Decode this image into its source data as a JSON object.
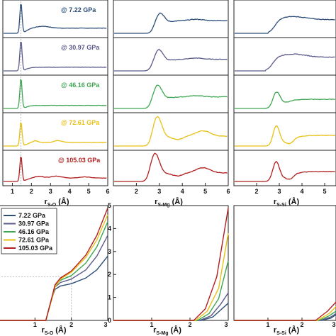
{
  "figure": {
    "pressures": [
      "7.22 GPa",
      "30.97 GPa",
      "46.16 GPa",
      "72.61 GPa",
      "105.03 GPa"
    ],
    "pressure_labels": [
      "@ 7.22 GPa",
      "@ 30.97 GPa",
      "@ 46.16 GPa",
      "@ 72.61 GPa",
      "@ 105.03 GPa"
    ],
    "colors": [
      "#2b4d78",
      "#5a5a8c",
      "#3fa652",
      "#e8c014",
      "#b21d1d"
    ],
    "column_labels": [
      {
        "main": "r",
        "sub": "S-O",
        "unit": " (Å)"
      },
      {
        "main": "r",
        "sub": "S-Mg",
        "unit": " (Å)"
      },
      {
        "main": "r",
        "sub": "S-Si",
        "unit": " (Å)"
      }
    ],
    "top_xticks": [
      [
        "1",
        "2",
        "3",
        "4",
        "5",
        "6"
      ],
      [
        "2",
        "3",
        "4",
        "5",
        "6"
      ],
      [
        "2",
        "3",
        "4",
        "5"
      ]
    ],
    "bottom_xticks": [
      [
        "1",
        "2",
        "3"
      ],
      [
        "1",
        "2",
        "3"
      ],
      [
        "1",
        "2",
        "3"
      ]
    ],
    "bottom_yticks": [
      "0",
      "1",
      "2",
      "3",
      "4",
      "5"
    ]
  },
  "chart_data": [
    {
      "type": "line",
      "panel": "top-left",
      "x_range": [
        0.5,
        6
      ],
      "xlabel": "rS-O (Å)",
      "series": [
        {
          "name": "7.22 GPa",
          "peak_x": 1.45,
          "peak_height": 1.0,
          "tail_level": 0.17
        },
        {
          "name": "30.97 GPa",
          "peak_x": 1.45,
          "peak_height": 1.0,
          "tail_level": 0.12
        },
        {
          "name": "46.16 GPa",
          "peak_x": 1.45,
          "peak_height": 1.0,
          "tail_level": 0.1
        },
        {
          "name": "72.61 GPa",
          "peak_x": 1.45,
          "peak_height": 0.8,
          "tail_level": 0.12
        },
        {
          "name": "105.03 GPa",
          "peak_x": 1.45,
          "peak_height": 0.9,
          "tail_level": 0.12
        }
      ]
    },
    {
      "type": "line",
      "panel": "top-middle",
      "x_range": [
        1,
        6
      ],
      "xlabel": "rS-Mg (Å)",
      "series": [
        {
          "name": "7.22 GPa",
          "peak_x": 3.0,
          "onset_x": 2.4
        },
        {
          "name": "30.97 GPa",
          "peak_x": 2.95,
          "onset_x": 2.3
        },
        {
          "name": "46.16 GPa",
          "peak_x": 2.9,
          "onset_x": 2.3
        },
        {
          "name": "72.61 GPa",
          "peak_x": 2.9,
          "onset_x": 2.3
        },
        {
          "name": "105.03 GPa",
          "peak_x": 2.8,
          "onset_x": 2.2
        }
      ]
    },
    {
      "type": "line",
      "panel": "top-right",
      "x_range": [
        1,
        5.5
      ],
      "xlabel": "rS-Si (Å)",
      "series": [
        {
          "name": "7.22 GPa",
          "onset_x": 2.5
        },
        {
          "name": "30.97 GPa",
          "onset_x": 2.4
        },
        {
          "name": "46.16 GPa",
          "onset_x": 2.3
        },
        {
          "name": "72.61 GPa",
          "onset_x": 2.3
        },
        {
          "name": "105.03 GPa",
          "onset_x": 2.2
        }
      ]
    },
    {
      "type": "line",
      "panel": "bottom-left",
      "xlabel": "rS-O (Å)",
      "x_range": [
        0,
        3
      ],
      "ylim": [
        0,
        5
      ],
      "legend": "top-left",
      "series": [
        {
          "name": "7.22 GPa",
          "points": [
            [
              0,
              0
            ],
            [
              1.3,
              0
            ],
            [
              1.45,
              0.9
            ],
            [
              1.55,
              1.35
            ],
            [
              1.7,
              1.5
            ],
            [
              2,
              1.6
            ],
            [
              2.4,
              1.85
            ],
            [
              2.7,
              2.2
            ],
            [
              3,
              2.8
            ]
          ]
        },
        {
          "name": "30.97 GPa",
          "points": [
            [
              0,
              0
            ],
            [
              1.3,
              0
            ],
            [
              1.45,
              0.9
            ],
            [
              1.55,
              1.45
            ],
            [
              1.7,
              1.65
            ],
            [
              2,
              1.8
            ],
            [
              2.4,
              2.2
            ],
            [
              2.7,
              2.8
            ],
            [
              3,
              3.7
            ]
          ]
        },
        {
          "name": "46.16 GPa",
          "points": [
            [
              0,
              0
            ],
            [
              1.3,
              0
            ],
            [
              1.45,
              0.9
            ],
            [
              1.55,
              1.5
            ],
            [
              1.7,
              1.75
            ],
            [
              2,
              1.95
            ],
            [
              2.4,
              2.5
            ],
            [
              2.7,
              3.2
            ],
            [
              3,
              4.3
            ]
          ]
        },
        {
          "name": "72.61 GPa",
          "points": [
            [
              0,
              0
            ],
            [
              1.3,
              0
            ],
            [
              1.45,
              0.85
            ],
            [
              1.55,
              1.45
            ],
            [
              1.7,
              1.8
            ],
            [
              2,
              2.1
            ],
            [
              2.4,
              2.75
            ],
            [
              2.7,
              3.5
            ],
            [
              3,
              4.6
            ]
          ]
        },
        {
          "name": "105.03 GPa",
          "points": [
            [
              0,
              0
            ],
            [
              1.3,
              0
            ],
            [
              1.45,
              0.9
            ],
            [
              1.55,
              1.55
            ],
            [
              1.7,
              1.85
            ],
            [
              2,
              2.15
            ],
            [
              2.4,
              2.85
            ],
            [
              2.7,
              3.7
            ],
            [
              3,
              4.9
            ]
          ]
        }
      ]
    },
    {
      "type": "line",
      "panel": "bottom-middle",
      "xlabel": "rS-Mg (Å)",
      "x_range": [
        0,
        3
      ],
      "ylim": [
        0,
        5
      ],
      "series": [
        {
          "name": "7.22 GPa",
          "points": [
            [
              0,
              0
            ],
            [
              2.3,
              0
            ],
            [
              2.6,
              0.15
            ],
            [
              2.8,
              0.45
            ],
            [
              3,
              0.75
            ]
          ]
        },
        {
          "name": "30.97 GPa",
          "points": [
            [
              0,
              0
            ],
            [
              2.25,
              0
            ],
            [
              2.55,
              0.2
            ],
            [
              2.8,
              0.7
            ],
            [
              3,
              1.2
            ]
          ]
        },
        {
          "name": "46.16 GPa",
          "points": [
            [
              0,
              0
            ],
            [
              2.2,
              0
            ],
            [
              2.5,
              0.3
            ],
            [
              2.75,
              0.95
            ],
            [
              3,
              2.6
            ]
          ]
        },
        {
          "name": "72.61 GPa",
          "points": [
            [
              0,
              0
            ],
            [
              2.15,
              0
            ],
            [
              2.45,
              0.4
            ],
            [
              2.75,
              1.4
            ],
            [
              3,
              3.8
            ]
          ]
        },
        {
          "name": "105.03 GPa",
          "points": [
            [
              0,
              0
            ],
            [
              2.1,
              0
            ],
            [
              2.4,
              0.5
            ],
            [
              2.7,
              1.9
            ],
            [
              3,
              4.9
            ]
          ]
        }
      ]
    },
    {
      "type": "line",
      "panel": "bottom-right",
      "xlabel": "rS-Si (Å)",
      "x_range": [
        0,
        3
      ],
      "ylim": [
        0,
        5
      ],
      "series": [
        {
          "name": "7.22 GPa",
          "points": [
            [
              0,
              0
            ],
            [
              2.6,
              0
            ],
            [
              2.85,
              0.1
            ],
            [
              3,
              0.25
            ]
          ]
        },
        {
          "name": "30.97 GPa",
          "points": [
            [
              0,
              0
            ],
            [
              2.55,
              0
            ],
            [
              2.85,
              0.15
            ],
            [
              3,
              0.3
            ]
          ]
        },
        {
          "name": "46.16 GPa",
          "points": [
            [
              0,
              0
            ],
            [
              2.5,
              0
            ],
            [
              2.8,
              0.2
            ],
            [
              3,
              0.4
            ]
          ]
        },
        {
          "name": "72.61 GPa",
          "points": [
            [
              0,
              0
            ],
            [
              2.45,
              0
            ],
            [
              2.8,
              0.3
            ],
            [
              3,
              0.6
            ]
          ]
        },
        {
          "name": "105.03 GPa",
          "points": [
            [
              0,
              0
            ],
            [
              2.4,
              0
            ],
            [
              2.75,
              0.4
            ],
            [
              3,
              0.8
            ]
          ]
        }
      ]
    }
  ]
}
